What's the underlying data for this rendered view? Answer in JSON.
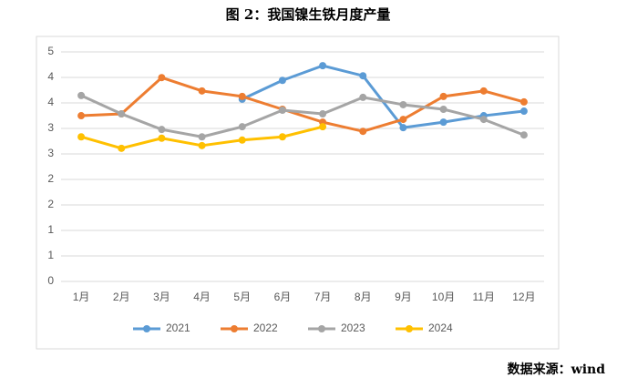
{
  "chart_data": {
    "type": "line",
    "title": "图 2：我国镍生铁月度产量",
    "source": "数据来源：wind",
    "categories": [
      "1月",
      "2月",
      "3月",
      "4月",
      "5月",
      "6月",
      "7月",
      "8月",
      "9月",
      "10月",
      "11月",
      "12月"
    ],
    "series": [
      {
        "name": "2021",
        "color": "#5b9bd5",
        "values": [
          null,
          null,
          null,
          null,
          3.97,
          4.38,
          4.7,
          4.48,
          3.35,
          3.47,
          3.61,
          3.71
        ]
      },
      {
        "name": "2022",
        "color": "#ed7d31",
        "values": [
          3.61,
          3.65,
          4.44,
          4.15,
          4.03,
          3.75,
          3.47,
          3.27,
          3.53,
          4.03,
          4.15,
          3.91
        ]
      },
      {
        "name": "2023",
        "color": "#a5a5a5",
        "values": [
          4.05,
          3.65,
          3.31,
          3.15,
          3.37,
          3.73,
          3.65,
          4.01,
          3.85,
          3.75,
          3.53,
          3.19
        ]
      },
      {
        "name": "2024",
        "color": "#ffc000",
        "values": [
          3.15,
          2.9,
          3.12,
          2.96,
          3.08,
          3.15,
          3.37,
          null,
          null,
          null,
          null,
          null
        ]
      }
    ],
    "ylim": [
      0,
      5
    ],
    "yticks": [
      0,
      {
        "value": 0.556,
        "label": "1"
      },
      {
        "value": 1.111,
        "label": "1"
      },
      {
        "value": 1.667,
        "label": "2"
      },
      {
        "value": 2.222,
        "label": "2"
      },
      {
        "value": 2.778,
        "label": "3"
      },
      {
        "value": 3.333,
        "label": "3"
      },
      {
        "value": 3.889,
        "label": "4"
      },
      {
        "value": 4.444,
        "label": "4"
      },
      5
    ],
    "grid": true,
    "legend": "bottom"
  }
}
